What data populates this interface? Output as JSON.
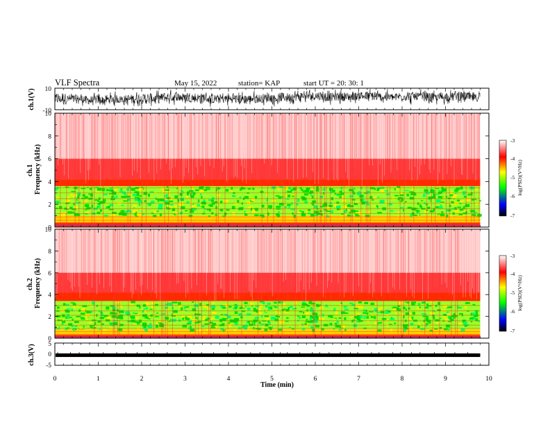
{
  "header": {
    "title": "VLF Spectra",
    "date": "May 15, 2022",
    "station": "station= KAP",
    "start": "start  UT  =   20: 30: 1"
  },
  "colorscale": [
    "#ffffff",
    "#ff0000",
    "#ffff00",
    "#00ff00",
    "#0000ff",
    "#000000"
  ],
  "chart_data": [
    {
      "type": "line",
      "name": "ch1-waveform",
      "ylabel": "ch.1(V)",
      "ylim": [
        -10,
        10
      ],
      "y_tick_labels": [
        "10",
        "-10"
      ],
      "x_range_min": [
        0,
        9.8
      ],
      "approx_level": 0,
      "approx_amplitude": 8
    },
    {
      "type": "heatmap",
      "name": "ch1-spectrogram",
      "ylabel": "ch.1\nFrequency  (kHz)",
      "ylim": [
        0,
        10
      ],
      "y_ticks": [
        0,
        2,
        4,
        6,
        8,
        10
      ],
      "x_range_min": [
        0,
        9.8
      ],
      "color_label": "log(PSD)(V²/Hz)",
      "color_range": [
        -7,
        -3
      ],
      "color_ticks": [
        "-3",
        "-4",
        "-5",
        "-6",
        "-7"
      ],
      "bands": [
        {
          "from_khz": 4.2,
          "to_khz": 10,
          "level": -3.4
        },
        {
          "from_khz": 3.6,
          "to_khz": 4.2,
          "level": -4.0
        },
        {
          "from_khz": 1.0,
          "to_khz": 3.6,
          "level": -4.8
        },
        {
          "from_khz": 0.4,
          "to_khz": 1.0,
          "level": -4.2
        },
        {
          "from_khz": 0,
          "to_khz": 0.4,
          "level": -3.8
        }
      ]
    },
    {
      "type": "heatmap",
      "name": "ch2-spectrogram",
      "ylabel": "ch.2\nFrequency  (kHz)",
      "ylim": [
        0,
        10
      ],
      "y_ticks": [
        0,
        2,
        4,
        6,
        8,
        10
      ],
      "x_range_min": [
        0,
        9.8
      ],
      "color_label": "log(PSD)(V²/Hz)",
      "color_range": [
        -7,
        -3
      ],
      "color_ticks": [
        "-3",
        "-4",
        "-5",
        "-6",
        "-7"
      ],
      "bands": [
        {
          "from_khz": 4.2,
          "to_khz": 10,
          "level": -3.4
        },
        {
          "from_khz": 3.4,
          "to_khz": 4.2,
          "level": -4.0
        },
        {
          "from_khz": 0.8,
          "to_khz": 3.4,
          "level": -5.0
        },
        {
          "from_khz": 0.3,
          "to_khz": 0.8,
          "level": -4.2
        },
        {
          "from_khz": 0,
          "to_khz": 0.3,
          "level": -3.8
        }
      ]
    },
    {
      "type": "line",
      "name": "ch3-waveform",
      "ylabel": "ch.3(V)",
      "ylim": [
        -5,
        5
      ],
      "y_tick_labels": [
        "5",
        "0",
        "-5"
      ],
      "x_range_min": [
        0,
        9.8
      ],
      "approx_level": 0,
      "approx_amplitude": 0.4
    }
  ],
  "x_axis": {
    "label": "Time  (min)",
    "xlim": [
      0,
      10
    ],
    "ticks": [
      "0",
      "1",
      "2",
      "3",
      "4",
      "5",
      "6",
      "7",
      "8",
      "9",
      "10"
    ]
  }
}
